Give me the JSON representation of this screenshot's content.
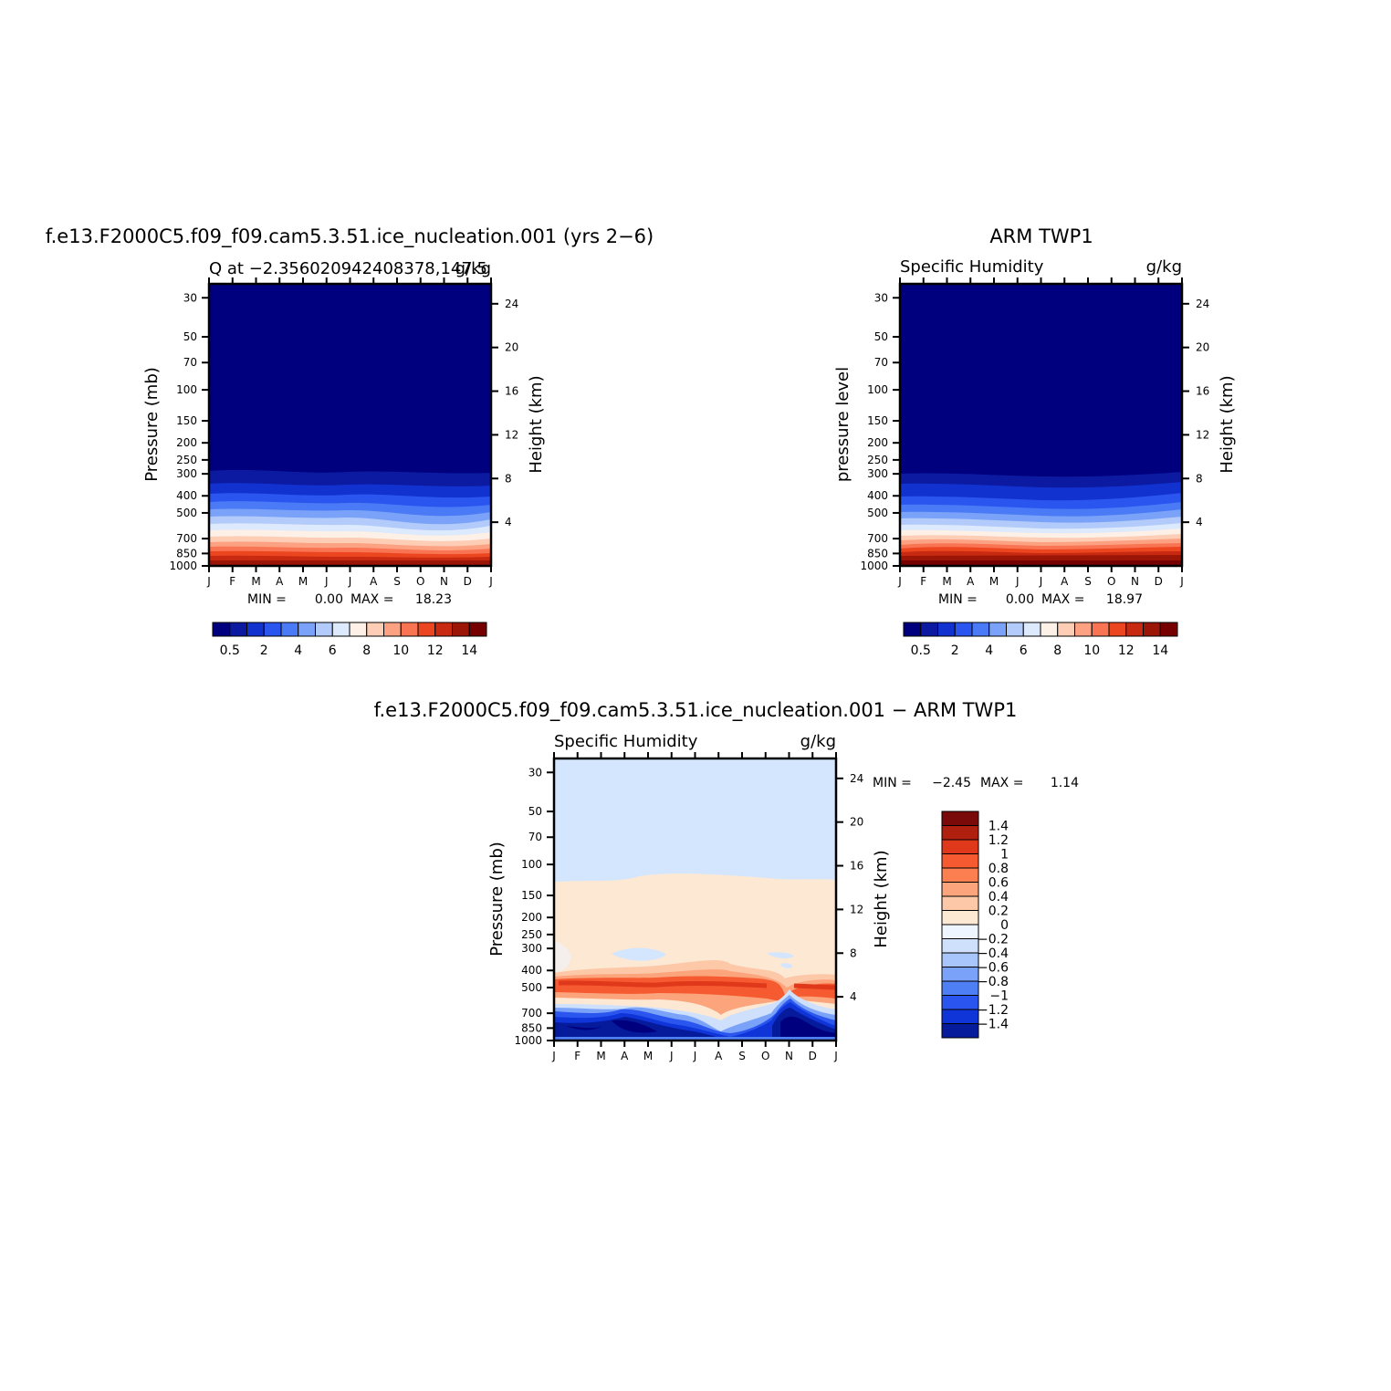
{
  "chart_data": [
    {
      "type": "heatmap",
      "title": "f.e13.F2000C5.f09_f09.cam5.3.51.ice_nucleation.001 (yrs 2−6)",
      "subtitle_left": "Q at −2.356020942408378,147.5",
      "subtitle_right": "g/kg",
      "ylabel": "Pressure (mb)",
      "ylabel_right": "Height (km)",
      "months": [
        "J",
        "F",
        "M",
        "A",
        "M",
        "J",
        "J",
        "A",
        "S",
        "O",
        "N",
        "D",
        "J"
      ],
      "pressure_ticks": [
        "30",
        "50",
        "70",
        "100",
        "150",
        "200",
        "250",
        "300",
        "400",
        "500",
        "700",
        "850",
        "1000"
      ],
      "height_ticks": [
        "24",
        "20",
        "16",
        "12",
        "8",
        "4"
      ],
      "min_label": "MIN =",
      "min_value": "0.00",
      "max_label": "MAX =",
      "max_value": "18.23",
      "colorbar_labels": [
        "0.5",
        "2",
        "4",
        "6",
        "8",
        "10",
        "12",
        "14"
      ],
      "colors": [
        "#00007f",
        "#0b1aa0",
        "#1232d0",
        "#2a55ee",
        "#4a7af5",
        "#7aa2f8",
        "#b3cbfb",
        "#dde9fd",
        "#fdf0e6",
        "#fdcdb5",
        "#fca283",
        "#f97452",
        "#ec4620",
        "#c72a10",
        "#9c1608",
        "#760000"
      ]
    },
    {
      "type": "heatmap",
      "title": "ARM TWP1",
      "subtitle_left": "Specific Humidity",
      "subtitle_right": "g/kg",
      "ylabel": "pressure level",
      "ylabel_right": "Height (km)",
      "months": [
        "J",
        "F",
        "M",
        "A",
        "M",
        "J",
        "J",
        "A",
        "S",
        "O",
        "N",
        "D",
        "J"
      ],
      "pressure_ticks": [
        "30",
        "50",
        "70",
        "100",
        "150",
        "200",
        "250",
        "300",
        "400",
        "500",
        "700",
        "850",
        "1000"
      ],
      "height_ticks": [
        "24",
        "20",
        "16",
        "12",
        "8",
        "4"
      ],
      "min_label": "MIN =",
      "min_value": "0.00",
      "max_label": "MAX =",
      "max_value": "18.97",
      "colorbar_labels": [
        "0.5",
        "2",
        "4",
        "6",
        "8",
        "10",
        "12",
        "14"
      ],
      "colors": [
        "#00007f",
        "#0b1aa0",
        "#1232d0",
        "#2a55ee",
        "#4a7af5",
        "#7aa2f8",
        "#b3cbfb",
        "#dde9fd",
        "#fdf0e6",
        "#fdcdb5",
        "#fca283",
        "#f97452",
        "#ec4620",
        "#c72a10",
        "#9c1608",
        "#760000"
      ]
    },
    {
      "type": "heatmap",
      "title": "f.e13.F2000C5.f09_f09.cam5.3.51.ice_nucleation.001 − ARM TWP1",
      "subtitle_left": "Specific Humidity",
      "subtitle_right": "g/kg",
      "ylabel": "Pressure (mb)",
      "ylabel_right": "Height (km)",
      "months": [
        "J",
        "F",
        "M",
        "A",
        "M",
        "J",
        "J",
        "A",
        "S",
        "O",
        "N",
        "D",
        "J"
      ],
      "pressure_ticks": [
        "30",
        "50",
        "70",
        "100",
        "150",
        "200",
        "250",
        "300",
        "400",
        "500",
        "700",
        "850",
        "1000"
      ],
      "height_ticks": [
        "24",
        "20",
        "16",
        "12",
        "8",
        "4"
      ],
      "min_label": "MIN =",
      "min_value": "−2.45",
      "max_label": "MAX =",
      "max_value": "1.14",
      "colorbar_labels": [
        "1.4",
        "1.2",
        "1",
        "0.8",
        "0.6",
        "0.4",
        "0.2",
        "0",
        "−0.2",
        "−0.4",
        "−0.6",
        "−0.8",
        "−1",
        "−1.2",
        "−1.4"
      ],
      "colors": [
        "#7a0a0a",
        "#b0200f",
        "#e0381a",
        "#f65a30",
        "#fb7f50",
        "#fca47c",
        "#fdc8a8",
        "#fde8d4",
        "#eef5fe",
        "#cfe0fd",
        "#a8c6fb",
        "#7aa2f8",
        "#4f7ff5",
        "#2a55ee",
        "#0f35d8",
        "#061a9c"
      ]
    }
  ]
}
